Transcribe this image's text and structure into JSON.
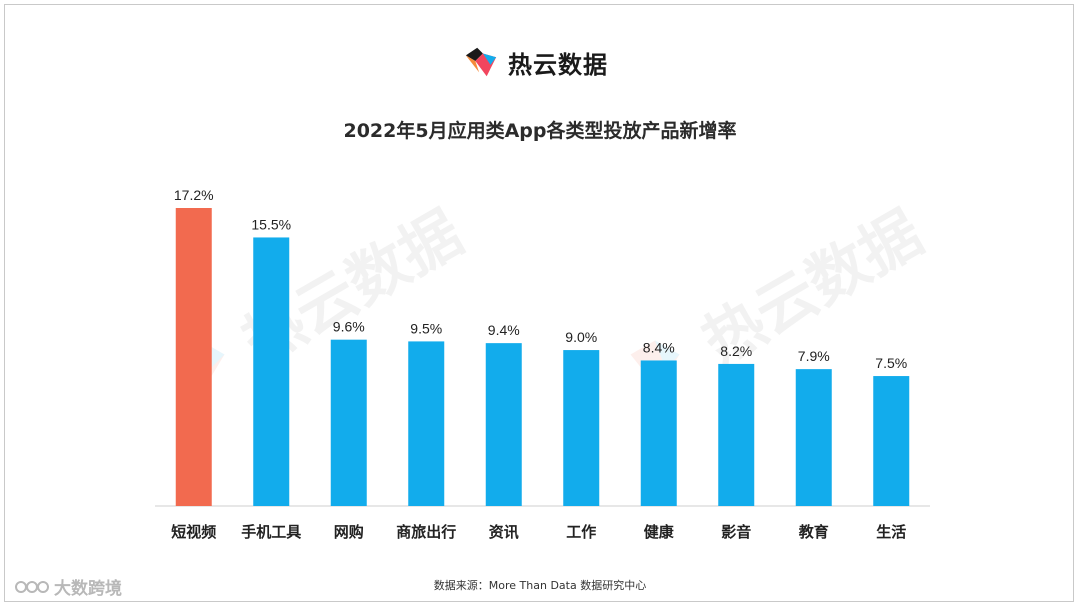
{
  "brand": {
    "name": "热云数据",
    "logo_icon": "reyun-logo-icon"
  },
  "watermark": {
    "text": "热云数据"
  },
  "corner_mark": {
    "text": "大数跨境",
    "icon": "dashukuajing-logo-icon"
  },
  "source": {
    "text": "数据来源：More Than Data 数据研究中心"
  },
  "colors": {
    "highlight": "#F26A4F",
    "bar": "#12ACEC",
    "axis": "#CFCFCF",
    "label": "#222222"
  },
  "chart_data": {
    "type": "bar",
    "title": "2022年5月应用类App各类型投放产品新增率",
    "xlabel": "",
    "ylabel": "",
    "ylim": [
      0,
      17.2
    ],
    "grid": false,
    "categories": [
      "短视频",
      "手机工具",
      "网购",
      "商旅出行",
      "资讯",
      "工作",
      "健康",
      "影音",
      "教育",
      "生活"
    ],
    "values": [
      17.2,
      15.5,
      9.6,
      9.5,
      9.4,
      9.0,
      8.4,
      8.2,
      7.9,
      7.5
    ],
    "value_labels": [
      "17.2%",
      "15.5%",
      "9.6%",
      "9.5%",
      "9.4%",
      "9.0%",
      "8.4%",
      "8.2%",
      "7.9%",
      "7.5%"
    ],
    "highlight_index": 0
  }
}
